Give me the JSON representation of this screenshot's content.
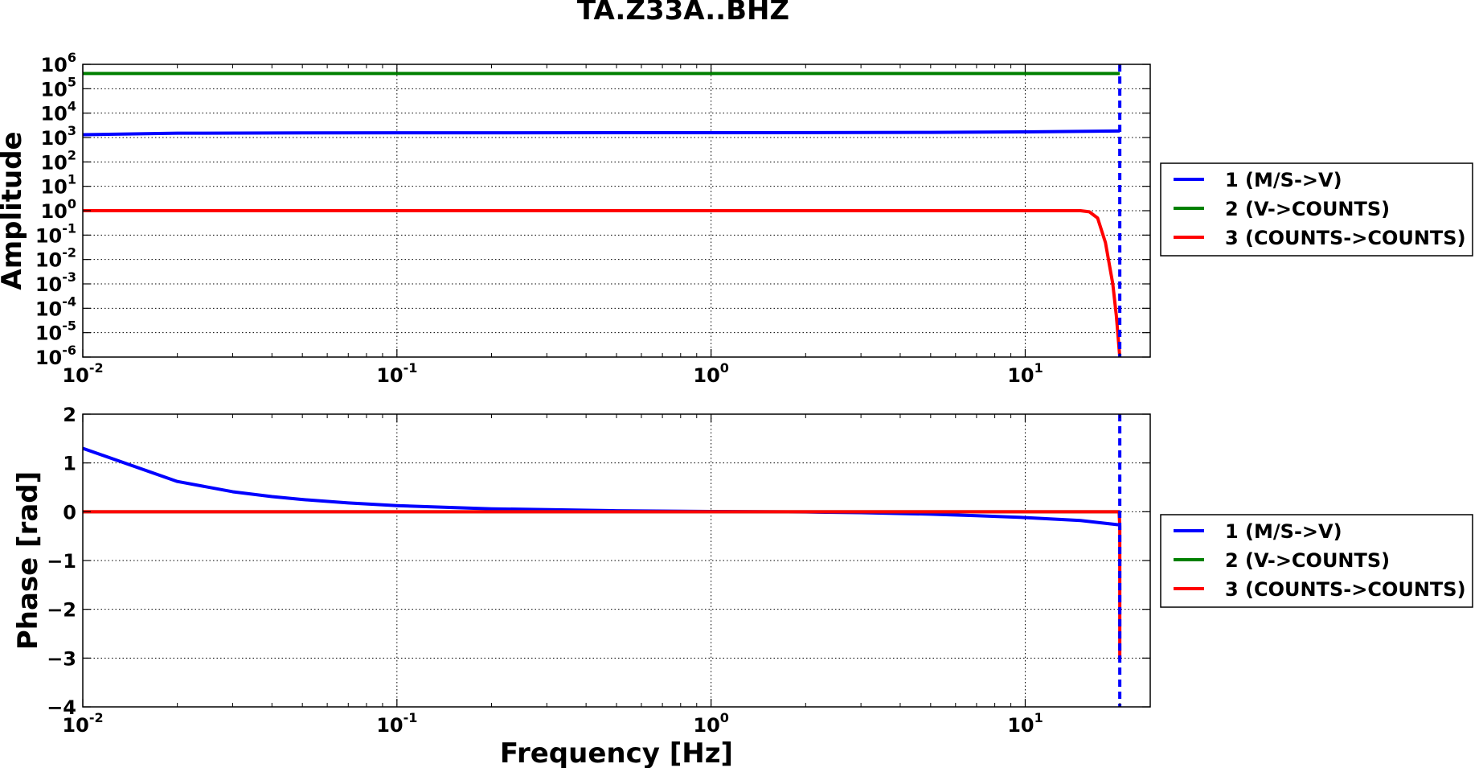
{
  "chart_data": [
    {
      "type": "line",
      "title": "TA.Z33A..BHZ",
      "xlabel": "",
      "ylabel": "Amplitude",
      "xscale": "log",
      "yscale": "log",
      "xlim": [
        0.01,
        25
      ],
      "ylim": [
        1e-06,
        1000000.0
      ],
      "grid": true,
      "x_ticks": [
        {
          "value": 0.01,
          "base": "10",
          "exp": "-2"
        },
        {
          "value": 0.1,
          "base": "10",
          "exp": "-1"
        },
        {
          "value": 1,
          "base": "10",
          "exp": "0"
        },
        {
          "value": 10,
          "base": "10",
          "exp": "1"
        }
      ],
      "y_ticks": [
        {
          "value": 1000000.0,
          "base": "10",
          "exp": "6"
        },
        {
          "value": 100000.0,
          "base": "10",
          "exp": "5"
        },
        {
          "value": 10000.0,
          "base": "10",
          "exp": "4"
        },
        {
          "value": 1000.0,
          "base": "10",
          "exp": "3"
        },
        {
          "value": 100.0,
          "base": "10",
          "exp": "2"
        },
        {
          "value": 10.0,
          "base": "10",
          "exp": "1"
        },
        {
          "value": 1.0,
          "base": "10",
          "exp": "0"
        },
        {
          "value": 0.1,
          "base": "10",
          "exp": "-1"
        },
        {
          "value": 0.01,
          "base": "10",
          "exp": "-2"
        },
        {
          "value": 0.001,
          "base": "10",
          "exp": "-3"
        },
        {
          "value": 0.0001,
          "base": "10",
          "exp": "-4"
        },
        {
          "value": 1e-05,
          "base": "10",
          "exp": "-5"
        },
        {
          "value": 1e-06,
          "base": "10",
          "exp": "-6"
        }
      ],
      "vline": {
        "x": 20,
        "color": "#0000ff",
        "style": "dashed"
      },
      "legend_position": "right",
      "series": [
        {
          "name": "1 (M/S->V)",
          "color": "#0000ff",
          "x": [
            0.01,
            0.02,
            0.05,
            0.1,
            0.5,
            1,
            5,
            10,
            20
          ],
          "y": [
            1300,
            1500,
            1550,
            1560,
            1570,
            1570,
            1620,
            1700,
            1850
          ]
        },
        {
          "name": "2 (V->COUNTS)",
          "color": "#008000",
          "x": [
            0.01,
            20
          ],
          "y": [
            420000,
            420000
          ]
        },
        {
          "name": "3 (COUNTS->COUNTS)",
          "color": "#ff0000",
          "x": [
            0.01,
            1,
            10,
            15,
            16,
            17,
            18,
            19,
            19.5,
            20
          ],
          "y": [
            1,
            1,
            1,
            1,
            0.9,
            0.5,
            0.05,
            0.001,
            5e-05,
            1e-06
          ]
        }
      ]
    },
    {
      "type": "line",
      "xlabel": "Frequency [Hz]",
      "ylabel": "Phase [rad]",
      "xscale": "log",
      "yscale": "linear",
      "xlim": [
        0.01,
        25
      ],
      "ylim": [
        -4,
        2
      ],
      "grid": true,
      "x_ticks": [
        {
          "value": 0.01,
          "base": "10",
          "exp": "-2"
        },
        {
          "value": 0.1,
          "base": "10",
          "exp": "-1"
        },
        {
          "value": 1,
          "base": "10",
          "exp": "0"
        },
        {
          "value": 10,
          "base": "10",
          "exp": "1"
        }
      ],
      "y_ticks": [
        {
          "value": 2,
          "label": "2"
        },
        {
          "value": 1,
          "label": "1"
        },
        {
          "value": 0,
          "label": "0"
        },
        {
          "value": -1,
          "label": "−1"
        },
        {
          "value": -2,
          "label": "−2"
        },
        {
          "value": -3,
          "label": "−3"
        },
        {
          "value": -4,
          "label": "−4"
        }
      ],
      "vline": {
        "x": 20,
        "color": "#0000ff",
        "style": "dashed"
      },
      "legend_position": "right",
      "series": [
        {
          "name": "1 (M/S->V)",
          "color": "#0000ff",
          "x": [
            0.01,
            0.02,
            0.03,
            0.04,
            0.05,
            0.07,
            0.1,
            0.2,
            0.5,
            1,
            2,
            3,
            5,
            7,
            10,
            15,
            20
          ],
          "y": [
            1.3,
            0.62,
            0.41,
            0.31,
            0.25,
            0.18,
            0.125,
            0.06,
            0.02,
            0.005,
            -0.005,
            -0.02,
            -0.05,
            -0.08,
            -0.12,
            -0.18,
            -0.27
          ]
        },
        {
          "name": "2 (V->COUNTS)",
          "color": "#008000",
          "x": [
            0.01,
            20
          ],
          "y": [
            0,
            0
          ]
        },
        {
          "name": "3 (COUNTS->COUNTS)",
          "color": "#ff0000",
          "x": [
            0.01,
            19.9,
            20,
            20
          ],
          "y": [
            0,
            0,
            -0.3,
            -3.0
          ]
        }
      ]
    }
  ]
}
